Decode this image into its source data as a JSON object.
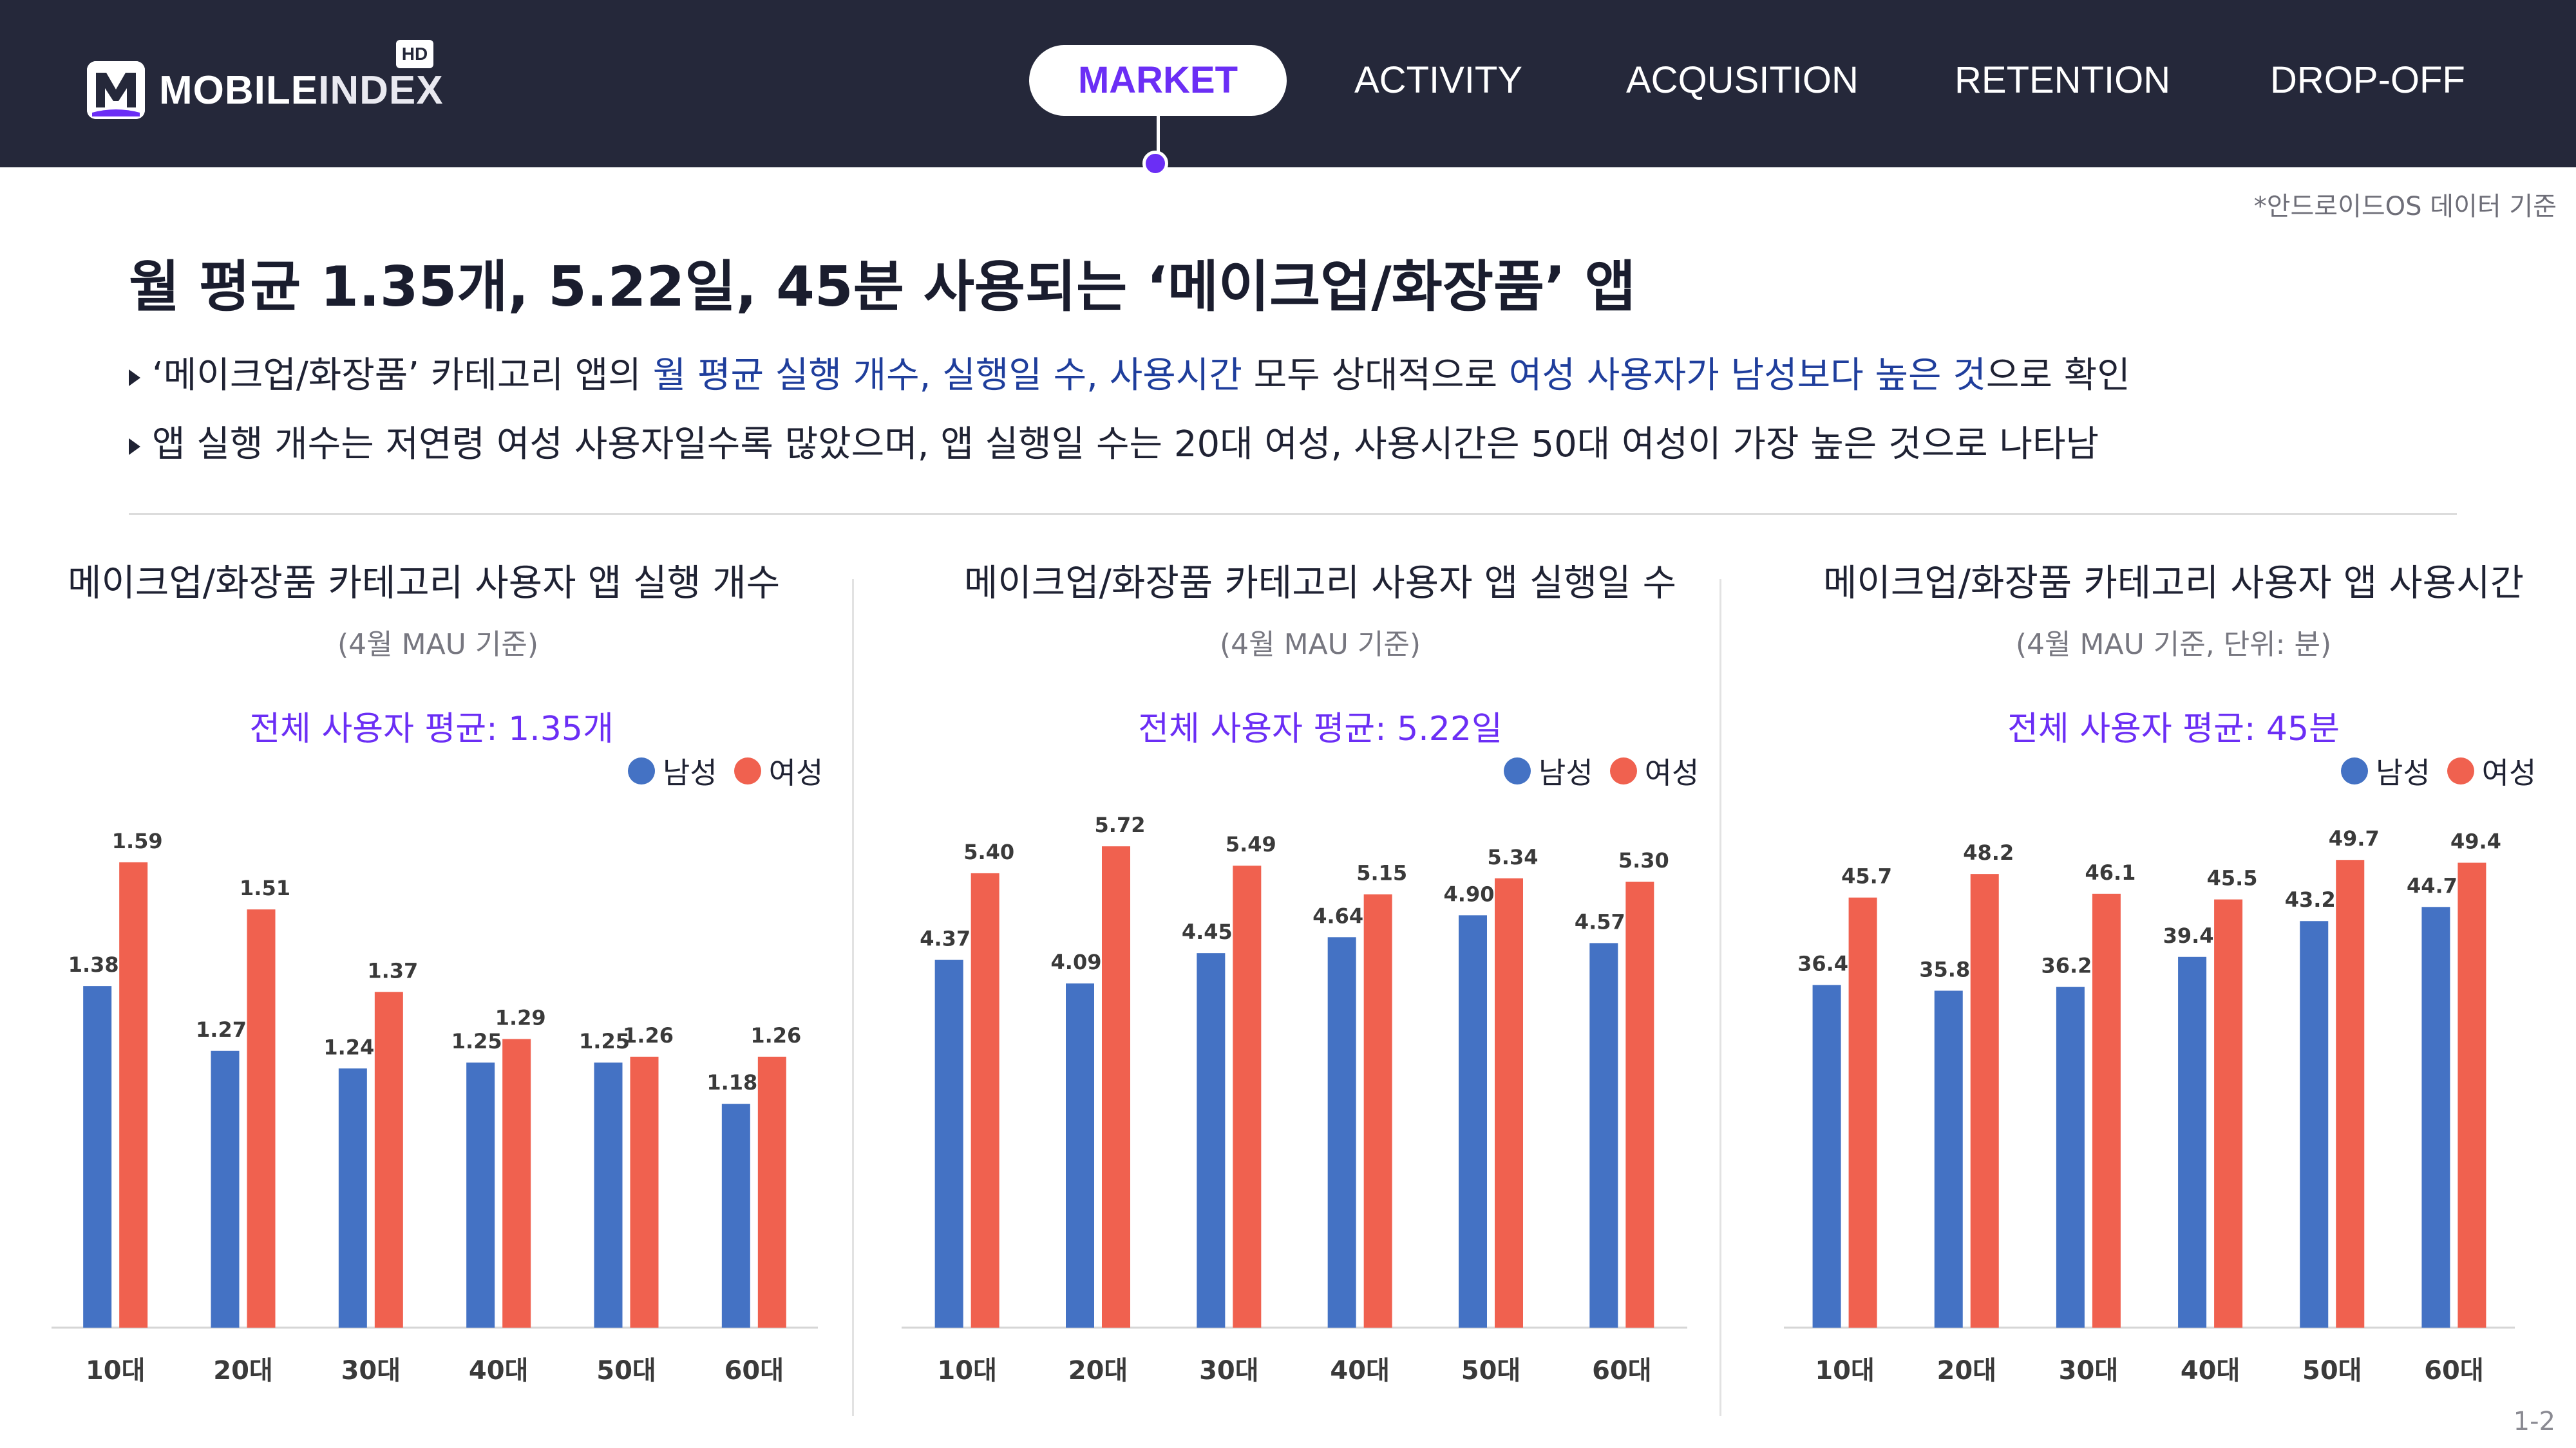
{
  "header": {
    "logo_text_bold": "MOBILE",
    "logo_text_light": "INDEX",
    "logo_badge": "HD",
    "nav": [
      "MARKET",
      "ACTIVITY",
      "ACQUSITION",
      "RETENTION",
      "DROP-OFF"
    ],
    "active_nav": "MARKET"
  },
  "note": "*안드로이드OS 데이터 기준",
  "headline": "월 평균 1.35개, 5.22일, 45분 사용되는 ‘메이크업/화장품’ 앱",
  "bullets": [
    {
      "parts": [
        {
          "text": "‘메이크업/화장품’ 카테고리 앱의 ",
          "hl": false
        },
        {
          "text": "월 평균 실행 개수, 실행일 수, 사용시간",
          "hl": true
        },
        {
          "text": " 모두 상대적으로 ",
          "hl": false
        },
        {
          "text": "여성 사용자가 남성보다 높은 것",
          "hl": true
        },
        {
          "text": "으로 확인",
          "hl": false
        }
      ]
    },
    {
      "parts": [
        {
          "text": "앱 실행 개수는 저연령 여성 사용자일수록 많았으며, 앱 실행일 수는 20대 여성, 사용시간은 50대 여성이 가장 높은 것으로 나타남",
          "hl": false
        }
      ]
    }
  ],
  "colors": {
    "male": "#4472c4",
    "female": "#f0614f",
    "accent": "#6b2ef5",
    "header_bg": "#25283a"
  },
  "chart_data": [
    {
      "type": "bar",
      "title": "메이크업/화장품 카테고리 사용자 앱 실행 개수",
      "subtitle": "(4월 MAU 기준)",
      "average_label": "전체 사용자 평균: 1.35개",
      "categories": [
        "10대",
        "20대",
        "30대",
        "40대",
        "50대",
        "60대"
      ],
      "series": [
        {
          "name": "남성",
          "values": [
            1.38,
            1.27,
            1.24,
            1.25,
            1.25,
            1.18
          ],
          "labels": [
            "1.38",
            "1.27",
            "1.24",
            "1.25",
            "1.25",
            "1.18"
          ]
        },
        {
          "name": "여성",
          "values": [
            1.59,
            1.51,
            1.37,
            1.29,
            1.26,
            1.26
          ],
          "labels": [
            "1.59",
            "1.51",
            "1.37",
            "1.29",
            "1.26",
            "1.26"
          ]
        }
      ],
      "ylim": [
        0.8,
        1.65
      ],
      "legend": "top-right",
      "grid": false
    },
    {
      "type": "bar",
      "title": "메이크업/화장품 카테고리 사용자 앱 실행일 수",
      "subtitle": "(4월 MAU 기준)",
      "average_label": "전체 사용자 평균: 5.22일",
      "categories": [
        "10대",
        "20대",
        "30대",
        "40대",
        "50대",
        "60대"
      ],
      "series": [
        {
          "name": "남성",
          "values": [
            4.37,
            4.09,
            4.45,
            4.64,
            4.9,
            4.57
          ],
          "labels": [
            "4.37",
            "4.09",
            "4.45",
            "4.64",
            "4.90",
            "4.57"
          ]
        },
        {
          "name": "여성",
          "values": [
            5.4,
            5.72,
            5.49,
            5.15,
            5.34,
            5.3
          ],
          "labels": [
            "5.40",
            "5.72",
            "5.49",
            "5.15",
            "5.34",
            "5.30"
          ]
        }
      ],
      "ylim": [
        0,
        5.95
      ],
      "legend": "top-right",
      "grid": false
    },
    {
      "type": "bar",
      "title": "메이크업/화장품 카테고리 사용자 앱 사용시간",
      "subtitle": "(4월 MAU 기준, 단위: 분)",
      "average_label": "전체 사용자 평균: 45분",
      "categories": [
        "10대",
        "20대",
        "30대",
        "40대",
        "50대",
        "60대"
      ],
      "series": [
        {
          "name": "남성",
          "values": [
            36.4,
            35.8,
            36.2,
            39.4,
            43.2,
            44.7
          ],
          "labels": [
            "36.4",
            "35.8",
            "36.2",
            "39.4",
            "43.2",
            "44.7"
          ]
        },
        {
          "name": "여성",
          "values": [
            45.7,
            48.2,
            46.1,
            45.5,
            49.7,
            49.4
          ],
          "labels": [
            "45.7",
            "48.2",
            "46.1",
            "45.5",
            "49.7",
            "49.4"
          ]
        }
      ],
      "ylim": [
        0,
        53.2
      ],
      "legend": "top-right",
      "grid": false
    }
  ],
  "page_number": "1-2"
}
